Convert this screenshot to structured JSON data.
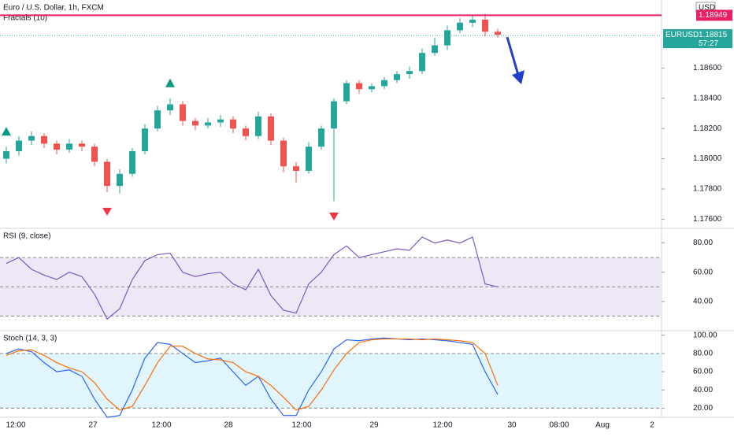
{
  "header": {
    "title": "Euro / U.S. Dollar, 1h, FXCM",
    "indicator": "Fractals (10)",
    "currency": "USD",
    "symbol": "EURUSD",
    "countdown": "57:27"
  },
  "time_labels": [
    "12:00",
    "27",
    "12:00",
    "28",
    "12:00",
    "29",
    "12:00",
    "30",
    "08:00",
    "Aug",
    "2"
  ],
  "chart_data": [
    {
      "type": "candlestick",
      "up_color": "#26a69a",
      "down_color": "#ef5350",
      "open": [
        1.18,
        1.1805,
        1.1812,
        1.1815,
        1.181,
        1.1806,
        1.181,
        1.1808,
        1.1798,
        1.1782,
        1.179,
        1.1805,
        1.182,
        1.1832,
        1.1836,
        1.1825,
        1.1822,
        1.1824,
        1.1826,
        1.182,
        1.1815,
        1.1828,
        1.1812,
        1.1795,
        1.1792,
        1.1808,
        1.182,
        1.1838,
        1.185,
        1.1846,
        1.1848,
        1.1852,
        1.1856,
        1.1858,
        1.187,
        1.1875,
        1.1885,
        1.189,
        1.1892,
        1.1884
      ],
      "high": [
        1.1808,
        1.1815,
        1.1818,
        1.1817,
        1.1812,
        1.1813,
        1.1812,
        1.181,
        1.18,
        1.1793,
        1.1807,
        1.1823,
        1.1835,
        1.184,
        1.1838,
        1.1827,
        1.1827,
        1.1829,
        1.1828,
        1.1822,
        1.1831,
        1.183,
        1.1814,
        1.1798,
        1.1811,
        1.1822,
        1.184,
        1.1852,
        1.1852,
        1.185,
        1.1854,
        1.1858,
        1.1861,
        1.1873,
        1.188,
        1.1888,
        1.1893,
        1.1895,
        1.1896,
        1.1886
      ],
      "low": [
        1.1797,
        1.1802,
        1.1809,
        1.1807,
        1.1803,
        1.1804,
        1.1805,
        1.1795,
        1.1778,
        1.1777,
        1.1788,
        1.1803,
        1.1818,
        1.1829,
        1.1822,
        1.1819,
        1.182,
        1.1821,
        1.1817,
        1.1812,
        1.1813,
        1.1809,
        1.1791,
        1.1784,
        1.179,
        1.1806,
        1.1772,
        1.1836,
        1.1843,
        1.1844,
        1.1846,
        1.185,
        1.1853,
        1.1856,
        1.1868,
        1.1872,
        1.1883,
        1.1887,
        1.1881,
        1.188
      ],
      "close": [
        1.1805,
        1.1812,
        1.1815,
        1.181,
        1.1806,
        1.181,
        1.1808,
        1.1798,
        1.1782,
        1.179,
        1.1805,
        1.182,
        1.1832,
        1.1836,
        1.1825,
        1.1822,
        1.1824,
        1.1826,
        1.182,
        1.1815,
        1.1828,
        1.1812,
        1.1795,
        1.1792,
        1.1808,
        1.182,
        1.1838,
        1.185,
        1.1846,
        1.1848,
        1.1852,
        1.1856,
        1.1858,
        1.187,
        1.1875,
        1.1885,
        1.189,
        1.1892,
        1.1884,
        1.1882
      ],
      "fractals_up": [
        0,
        13
      ],
      "fractals_down": [
        8,
        26
      ],
      "resistance": {
        "value": 1.18949,
        "label": "1.18949",
        "color": "#e91e63"
      },
      "last_price": {
        "value": 1.18815,
        "label": "1.18815"
      },
      "ylim": [
        1.1755,
        1.1905
      ],
      "yticks": [
        {
          "value": 1.176,
          "label": "1.17600"
        },
        {
          "value": 1.178,
          "label": "1.17800"
        },
        {
          "value": 1.18,
          "label": "1.18000"
        },
        {
          "value": 1.182,
          "label": "1.18200"
        },
        {
          "value": 1.184,
          "label": "1.18400"
        },
        {
          "value": 1.186,
          "label": "1.18600"
        }
      ]
    },
    {
      "type": "line",
      "title": "RSI (9, close)",
      "ylim": [
        20,
        90
      ],
      "bands": [
        30,
        50,
        70
      ],
      "band_fill": "#ede7f6",
      "yticks": [
        {
          "value": 40,
          "label": "40.00"
        },
        {
          "value": 60,
          "label": "60.00"
        },
        {
          "value": 80,
          "label": "80.00"
        }
      ],
      "series": [
        {
          "color": "#7e57c2",
          "values": [
            66,
            70,
            62,
            58,
            55,
            60,
            57,
            45,
            28,
            35,
            55,
            68,
            72,
            73,
            60,
            57,
            59,
            60,
            52,
            48,
            62,
            44,
            34,
            32,
            52,
            60,
            72,
            78,
            70,
            72,
            74,
            76,
            75,
            84,
            80,
            82,
            80,
            84,
            52,
            50
          ]
        }
      ]
    },
    {
      "type": "line",
      "title": "Stoch (14, 3, 3)",
      "ylim": [
        10,
        105
      ],
      "bands": [
        20,
        80
      ],
      "band_fill": "#e1f5fe",
      "yticks": [
        {
          "value": 20,
          "label": "20.00"
        },
        {
          "value": 40,
          "label": "40.00"
        },
        {
          "value": 60,
          "label": "60.00"
        },
        {
          "value": 80,
          "label": "80.00"
        },
        {
          "value": 100,
          "label": "100.00"
        }
      ],
      "series": [
        {
          "color": "#2962ff",
          "values": [
            80,
            85,
            82,
            70,
            60,
            62,
            55,
            30,
            10,
            12,
            40,
            75,
            92,
            90,
            80,
            70,
            72,
            75,
            60,
            45,
            55,
            30,
            12,
            12,
            40,
            60,
            85,
            95,
            94,
            96,
            97,
            96,
            95,
            96,
            95,
            94,
            92,
            90,
            60,
            35
          ]
        },
        {
          "color": "#ff6d00",
          "values": [
            78,
            83,
            84,
            78,
            70,
            64,
            60,
            48,
            30,
            18,
            22,
            45,
            70,
            88,
            88,
            80,
            74,
            73,
            70,
            60,
            55,
            45,
            32,
            18,
            22,
            40,
            62,
            80,
            92,
            95,
            96,
            96,
            96,
            95,
            96,
            95,
            94,
            92,
            80,
            45
          ]
        }
      ]
    }
  ]
}
